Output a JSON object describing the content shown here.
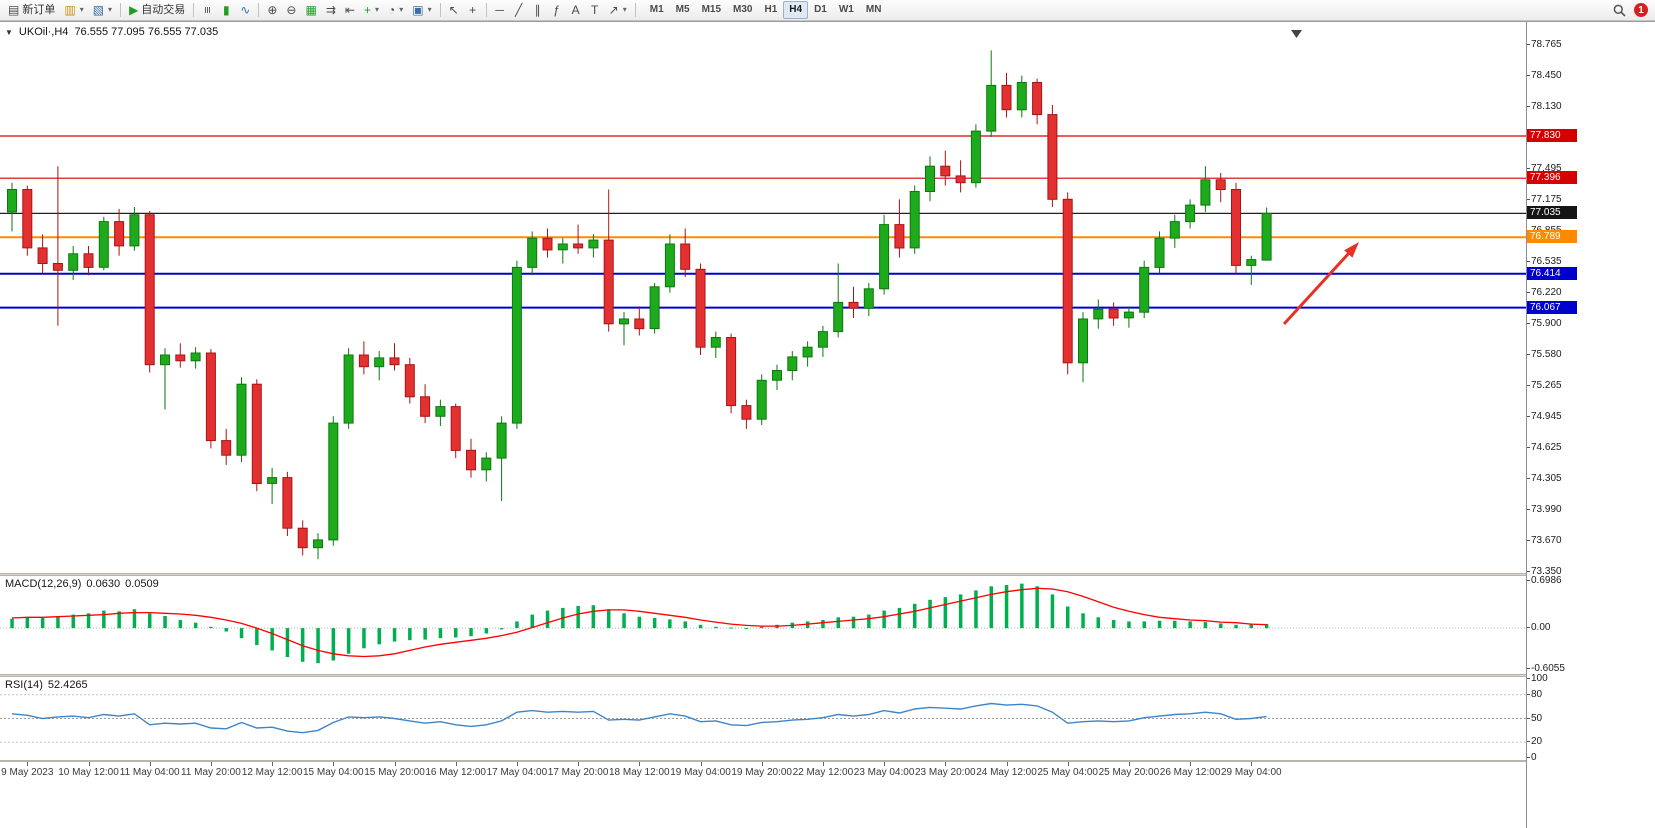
{
  "toolbar": {
    "new_order_label": "新订单",
    "auto_trading_label": "自动交易",
    "timeframes": [
      "M1",
      "M5",
      "M15",
      "M30",
      "H1",
      "H4",
      "D1",
      "W1",
      "MN"
    ],
    "active_timeframe": "H4",
    "notification_count": "1"
  },
  "icons": {
    "new_order": "▤",
    "new_chart": "▥",
    "profiles": "▧",
    "auto_trading": "▶",
    "bars": "≡",
    "candles": "▮",
    "line_chart": "∿",
    "zoom_in": "⊕",
    "zoom_out": "⊖",
    "tile": "▦",
    "scroll": "⇉",
    "shift": "⇤",
    "indicators": "+",
    "periods": "◔",
    "template": "▣",
    "cursor": "↖",
    "crosshair": "+",
    "hline": "─",
    "trendline": "╱",
    "channel": "∥",
    "fibo": "ƒ",
    "text": "A",
    "label": "T",
    "arrows": "↗",
    "dropdown": "▾",
    "collapse": "▼"
  },
  "chart": {
    "symbol_period": "UKOil·,H4",
    "ohlc": "76.555 77.095 76.555 77.035"
  },
  "macd": {
    "label": "MACD(12,26,9)",
    "value_main": "0.0630",
    "value_signal": "0.0509",
    "scale": [
      "0.6986",
      "0.00",
      "-0.6055"
    ]
  },
  "rsi": {
    "label": "RSI(14)",
    "value": "52.4265",
    "scale": [
      "100",
      "80",
      "50",
      "20",
      "0"
    ]
  },
  "price_scale": {
    "ticks": [
      "78.765",
      "78.450",
      "78.130",
      "77.495",
      "77.175",
      "76.855",
      "76.535",
      "76.220",
      "75.900",
      "75.580",
      "75.265",
      "74.945",
      "74.625",
      "74.305",
      "73.990",
      "73.670",
      "73.350"
    ],
    "badges": [
      {
        "label": "77.830",
        "color": "#d40000"
      },
      {
        "label": "77.396",
        "color": "#d40000"
      },
      {
        "label": "77.035",
        "color": "#151515"
      },
      {
        "label": "76.789",
        "color": "#ff8a00"
      },
      {
        "label": "76.414",
        "color": "#0000cc"
      },
      {
        "label": "76.067",
        "color": "#0000cc"
      }
    ]
  },
  "annotation": {
    "color": "#e53225"
  },
  "chart_data": {
    "type": "candlestick",
    "symbol": "UKOil",
    "period": "H4",
    "ylim": [
      73.35,
      78.765
    ],
    "colors": {
      "up": "#1dab1d",
      "up_border": "#0b7a0b",
      "down": "#e33030",
      "down_border": "#a81414",
      "macd_hist": "#00b050",
      "macd_signal": "#ff0000",
      "rsi_line": "#3d85c8"
    },
    "lines": [
      {
        "price": 77.83,
        "color": "#d40000",
        "width": 1.2
      },
      {
        "price": 77.396,
        "color": "#d40000",
        "width": 1.2
      },
      {
        "price": 77.035,
        "color": "#222222",
        "width": 1.2
      },
      {
        "price": 76.789,
        "color": "#ff8a00",
        "width": 2
      },
      {
        "price": 76.414,
        "color": "#0000cc",
        "width": 2
      },
      {
        "price": 76.067,
        "color": "#0000cc",
        "width": 2
      }
    ],
    "candles": [
      [
        77.05,
        77.35,
        76.85,
        77.28
      ],
      [
        77.28,
        77.32,
        76.6,
        76.68
      ],
      [
        76.68,
        76.82,
        76.42,
        76.52
      ],
      [
        76.52,
        77.52,
        75.88,
        76.45
      ],
      [
        76.45,
        76.7,
        76.35,
        76.62
      ],
      [
        76.62,
        76.7,
        76.4,
        76.48
      ],
      [
        76.48,
        77.0,
        76.45,
        76.95
      ],
      [
        76.95,
        77.08,
        76.6,
        76.7
      ],
      [
        76.7,
        77.1,
        76.65,
        77.02
      ],
      [
        77.02,
        77.06,
        75.4,
        75.48
      ],
      [
        75.48,
        75.65,
        75.02,
        75.58
      ],
      [
        75.58,
        75.7,
        75.45,
        75.52
      ],
      [
        75.52,
        75.66,
        75.44,
        75.6
      ],
      [
        75.6,
        75.64,
        74.62,
        74.7
      ],
      [
        74.7,
        74.82,
        74.45,
        74.55
      ],
      [
        74.55,
        75.35,
        74.48,
        75.28
      ],
      [
        75.28,
        75.33,
        74.18,
        74.26
      ],
      [
        74.26,
        74.42,
        74.05,
        74.32
      ],
      [
        74.32,
        74.38,
        73.72,
        73.8
      ],
      [
        73.8,
        73.88,
        73.52,
        73.6
      ],
      [
        73.6,
        73.75,
        73.48,
        73.68
      ],
      [
        73.68,
        74.95,
        73.62,
        74.88
      ],
      [
        74.88,
        75.65,
        74.82,
        75.58
      ],
      [
        75.58,
        75.72,
        75.38,
        75.46
      ],
      [
        75.46,
        75.62,
        75.32,
        75.55
      ],
      [
        75.55,
        75.7,
        75.42,
        75.48
      ],
      [
        75.48,
        75.55,
        75.08,
        75.15
      ],
      [
        75.15,
        75.28,
        74.88,
        74.95
      ],
      [
        74.95,
        75.12,
        74.85,
        75.05
      ],
      [
        75.05,
        75.08,
        74.52,
        74.6
      ],
      [
        74.6,
        74.72,
        74.32,
        74.4
      ],
      [
        74.4,
        74.58,
        74.28,
        74.52
      ],
      [
        74.52,
        74.95,
        74.08,
        74.88
      ],
      [
        74.88,
        76.55,
        74.82,
        76.48
      ],
      [
        76.48,
        76.85,
        76.4,
        76.78
      ],
      [
        76.78,
        76.88,
        76.58,
        76.66
      ],
      [
        76.66,
        76.78,
        76.52,
        76.72
      ],
      [
        76.72,
        76.92,
        76.62,
        76.68
      ],
      [
        76.68,
        76.82,
        76.58,
        76.76
      ],
      [
        76.76,
        77.28,
        75.82,
        75.9
      ],
      [
        75.9,
        76.02,
        75.68,
        75.95
      ],
      [
        75.95,
        76.08,
        75.78,
        75.85
      ],
      [
        75.85,
        76.32,
        75.8,
        76.28
      ],
      [
        76.28,
        76.82,
        76.22,
        76.72
      ],
      [
        76.72,
        76.88,
        76.38,
        76.46
      ],
      [
        76.46,
        76.52,
        75.58,
        75.66
      ],
      [
        75.66,
        75.82,
        75.55,
        75.76
      ],
      [
        75.76,
        75.8,
        74.98,
        75.06
      ],
      [
        75.06,
        75.12,
        74.82,
        74.92
      ],
      [
        74.92,
        75.38,
        74.86,
        75.32
      ],
      [
        75.32,
        75.48,
        75.22,
        75.42
      ],
      [
        75.42,
        75.62,
        75.32,
        75.56
      ],
      [
        75.56,
        75.72,
        75.46,
        75.66
      ],
      [
        75.66,
        75.88,
        75.56,
        75.82
      ],
      [
        75.82,
        76.52,
        75.76,
        76.12
      ],
      [
        76.12,
        76.28,
        75.96,
        76.06
      ],
      [
        76.06,
        76.32,
        75.98,
        76.26
      ],
      [
        76.26,
        77.02,
        76.2,
        76.92
      ],
      [
        76.92,
        77.18,
        76.58,
        76.68
      ],
      [
        76.68,
        77.32,
        76.62,
        77.26
      ],
      [
        77.26,
        77.62,
        77.16,
        77.52
      ],
      [
        77.52,
        77.68,
        77.32,
        77.42
      ],
      [
        77.42,
        77.58,
        77.25,
        77.35
      ],
      [
        77.35,
        77.95,
        77.3,
        77.88
      ],
      [
        77.88,
        78.71,
        77.82,
        78.35
      ],
      [
        78.35,
        78.48,
        78.02,
        78.1
      ],
      [
        78.1,
        78.45,
        78.02,
        78.38
      ],
      [
        78.38,
        78.42,
        77.95,
        78.05
      ],
      [
        78.05,
        78.15,
        77.1,
        77.18
      ],
      [
        77.18,
        77.25,
        75.38,
        75.5
      ],
      [
        75.5,
        76.02,
        75.3,
        75.95
      ],
      [
        75.95,
        76.15,
        75.85,
        76.05
      ],
      [
        76.05,
        76.12,
        75.88,
        75.96
      ],
      [
        75.96,
        76.08,
        75.86,
        76.02
      ],
      [
        76.02,
        76.55,
        75.96,
        76.48
      ],
      [
        76.48,
        76.85,
        76.42,
        76.78
      ],
      [
        76.78,
        77.02,
        76.68,
        76.95
      ],
      [
        76.95,
        77.18,
        76.88,
        77.12
      ],
      [
        77.12,
        77.52,
        77.05,
        77.38
      ],
      [
        77.38,
        77.45,
        77.15,
        77.28
      ],
      [
        77.28,
        77.35,
        76.42,
        76.5
      ],
      [
        76.5,
        76.6,
        76.3,
        76.56
      ],
      [
        76.555,
        77.095,
        76.555,
        77.035
      ]
    ],
    "time_labels": [
      "9 May 2023",
      "10 May 12:00",
      "11 May 04:00",
      "11 May 20:00",
      "12 May 12:00",
      "15 May 04:00",
      "15 May 20:00",
      "16 May 12:00",
      "17 May 04:00",
      "17 May 20:00",
      "18 May 12:00",
      "19 May 04:00",
      "19 May 20:00",
      "22 May 12:00",
      "23 May 04:00",
      "23 May 20:00",
      "24 May 12:00",
      "25 May 04:00",
      "25 May 20:00",
      "26 May 12:00",
      "29 May 04:00"
    ],
    "macd": {
      "ylim": [
        -0.6055,
        0.6986
      ],
      "histogram": [
        0.14,
        0.16,
        0.15,
        0.17,
        0.2,
        0.22,
        0.26,
        0.25,
        0.28,
        0.22,
        0.18,
        0.12,
        0.08,
        0.02,
        -0.05,
        -0.15,
        -0.25,
        -0.33,
        -0.43,
        -0.5,
        -0.52,
        -0.48,
        -0.38,
        -0.3,
        -0.24,
        -0.2,
        -0.18,
        -0.17,
        -0.15,
        -0.14,
        -0.12,
        -0.08,
        -0.02,
        0.1,
        0.2,
        0.26,
        0.3,
        0.33,
        0.34,
        0.28,
        0.22,
        0.17,
        0.15,
        0.13,
        0.1,
        0.05,
        0.02,
        0.01,
        -0.01,
        0.02,
        0.05,
        0.08,
        0.1,
        0.12,
        0.16,
        0.17,
        0.2,
        0.26,
        0.3,
        0.36,
        0.42,
        0.46,
        0.5,
        0.56,
        0.62,
        0.64,
        0.66,
        0.62,
        0.5,
        0.32,
        0.22,
        0.16,
        0.12,
        0.1,
        0.1,
        0.11,
        0.11,
        0.1,
        0.09,
        0.07,
        0.05,
        0.06,
        0.063
      ],
      "signal": [
        0.15,
        0.16,
        0.16,
        0.17,
        0.18,
        0.19,
        0.2,
        0.22,
        0.23,
        0.23,
        0.22,
        0.21,
        0.19,
        0.16,
        0.12,
        0.07,
        0.0,
        -0.08,
        -0.17,
        -0.26,
        -0.33,
        -0.38,
        -0.41,
        -0.42,
        -0.41,
        -0.38,
        -0.33,
        -0.28,
        -0.24,
        -0.21,
        -0.18,
        -0.15,
        -0.11,
        -0.06,
        0.01,
        0.08,
        0.15,
        0.21,
        0.25,
        0.27,
        0.27,
        0.25,
        0.22,
        0.19,
        0.16,
        0.12,
        0.09,
        0.06,
        0.04,
        0.03,
        0.03,
        0.04,
        0.06,
        0.08,
        0.1,
        0.12,
        0.14,
        0.17,
        0.21,
        0.25,
        0.3,
        0.35,
        0.4,
        0.45,
        0.5,
        0.54,
        0.57,
        0.59,
        0.58,
        0.54,
        0.47,
        0.39,
        0.31,
        0.25,
        0.2,
        0.16,
        0.14,
        0.12,
        0.11,
        0.09,
        0.08,
        0.06,
        0.0509
      ]
    },
    "rsi": {
      "ylim": [
        0,
        100
      ],
      "values": [
        56,
        54,
        50,
        52,
        53,
        51,
        55,
        53,
        56,
        42,
        44,
        43,
        44,
        38,
        37,
        45,
        38,
        39,
        34,
        32,
        35,
        45,
        52,
        51,
        52,
        50,
        47,
        44,
        46,
        42,
        40,
        42,
        47,
        58,
        60,
        58,
        59,
        58,
        59,
        48,
        49,
        48,
        52,
        56,
        53,
        46,
        47,
        42,
        41,
        45,
        46,
        48,
        49,
        51,
        55,
        53,
        55,
        60,
        57,
        62,
        64,
        63,
        62,
        66,
        69,
        67,
        68,
        66,
        58,
        44,
        46,
        47,
        46,
        47,
        51,
        53,
        55,
        56,
        58,
        56,
        49,
        50,
        52.4
      ]
    }
  }
}
